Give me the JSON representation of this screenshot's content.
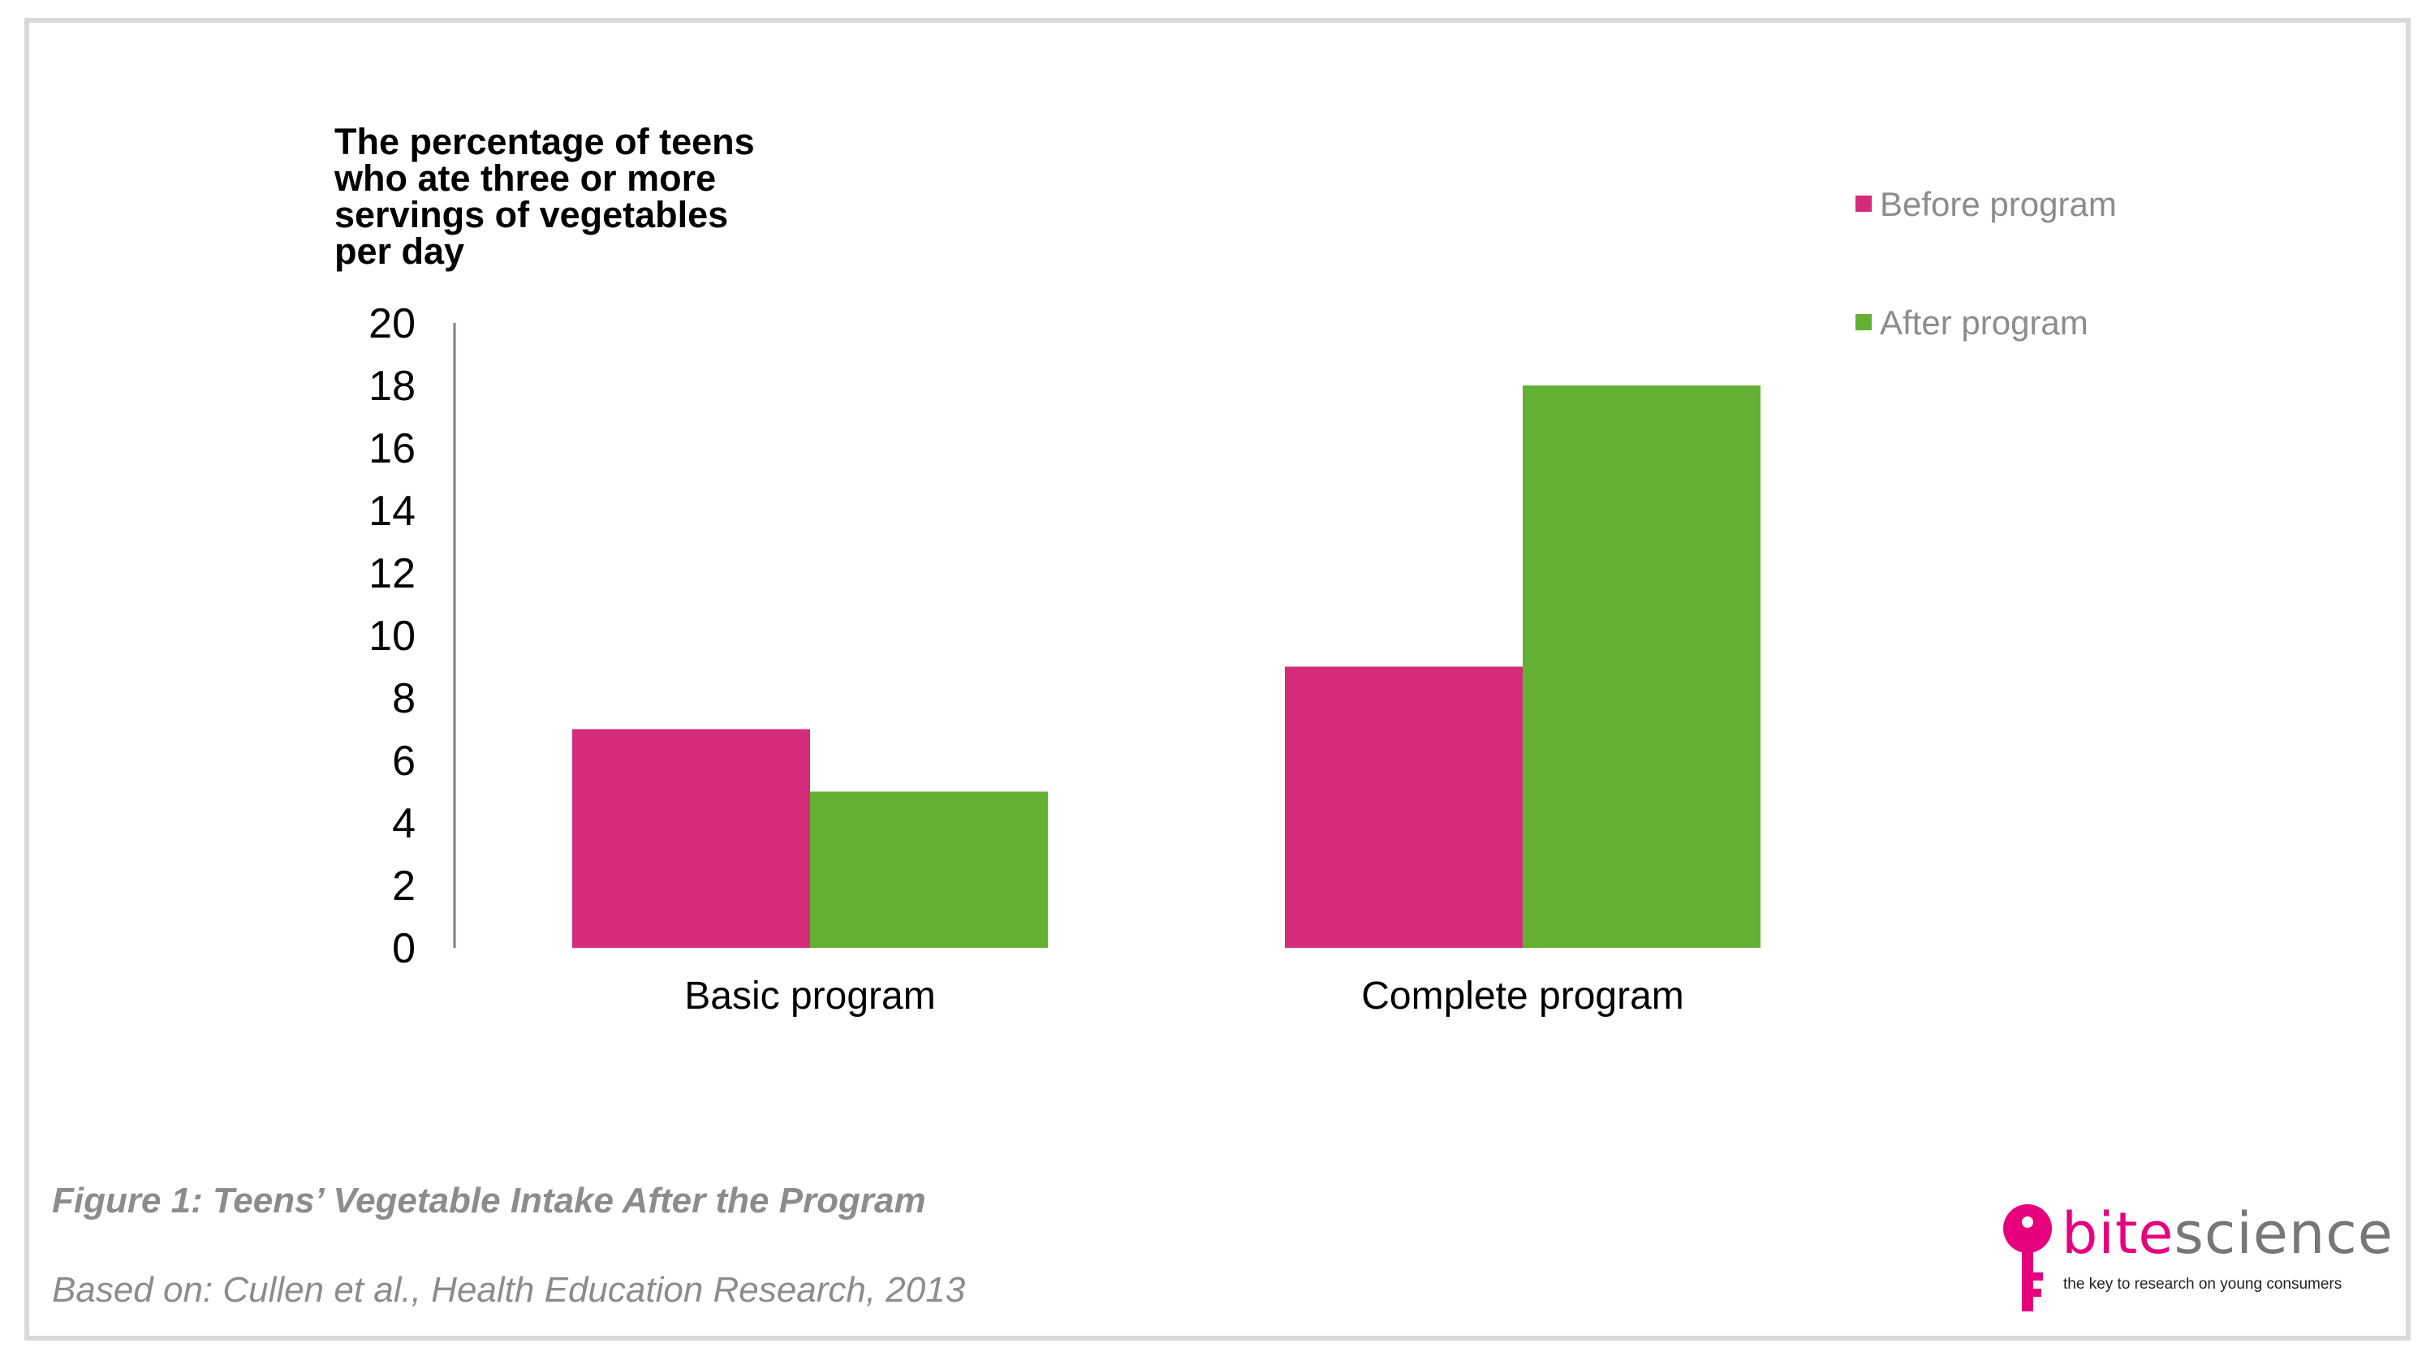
{
  "chart_data": {
    "type": "bar",
    "categories": [
      "Basic program",
      "Complete program"
    ],
    "series": [
      {
        "name": "Before program",
        "values": [
          7,
          9
        ],
        "color": "#d42c7a"
      },
      {
        "name": "After program",
        "values": [
          5,
          18
        ],
        "color": "#63b032"
      }
    ],
    "ylabel": "The percentage of teens who ate three or more servings of vegetables per day",
    "ylim": [
      0,
      20
    ],
    "yticks": [
      "0",
      "2",
      "4",
      "6",
      "8",
      "10",
      "12",
      "14",
      "16",
      "18",
      "20"
    ],
    "grid": false,
    "legend_position": "top-right"
  },
  "caption": "Figure 1: Teens’ Vegetable Intake After the Program",
  "source": "Based on: Cullen et al., Health Education Research, 2013",
  "logo": {
    "word_bite": "bite",
    "word_science": "science",
    "tagline": "the key to research on young consumers",
    "icon": "key-icon",
    "color": "#e6007e"
  }
}
